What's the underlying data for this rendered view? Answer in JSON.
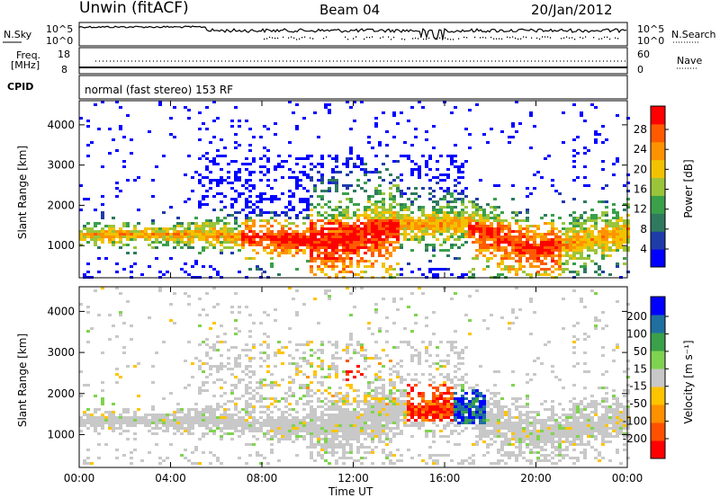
{
  "header": {
    "station": "Unwin (fitACF)",
    "beam": "Beam 04",
    "date": "20/Jan/2012"
  },
  "top_panels": {
    "nsky_label": "N.Sky",
    "nsky_ticks": [
      "10^5",
      "10^0"
    ],
    "nsearch_label": "N.Search",
    "nsearch_ticks": [
      "10^5",
      "10^0"
    ],
    "freq_label": "Freq.",
    "freq_unit": "[MHz]",
    "freq_ticks": [
      "18",
      "8"
    ],
    "nave_label": "Nave",
    "nave_ticks": [
      "60",
      "0"
    ],
    "cpid_label": "CPID",
    "cpid_text": "normal (fast stereo) 153 RF"
  },
  "colors": {
    "power_scale": [
      "#0000ff",
      "#1e3ca8",
      "#2f7a5e",
      "#3aa04a",
      "#9ac43a",
      "#f2c200",
      "#ff9200",
      "#ff5a00",
      "#ff0000"
    ],
    "velocity_scale": [
      "#ff0000",
      "#ff5000",
      "#ff9000",
      "#ffc400",
      "#c8c8c8",
      "#7fd34f",
      "#3aa04a",
      "#1f6fa0",
      "#0000ff"
    ]
  },
  "chart_data": [
    {
      "type": "heatmap",
      "name": "power",
      "xlabel": "",
      "ylabel": "Slant Range [km]",
      "xlim": [
        "00:00",
        "24:00"
      ],
      "ylim": [
        200,
        4600
      ],
      "yticks": [
        "4000",
        "3000",
        "2000",
        "1000"
      ],
      "colorbar_label": "Power [dB]",
      "colorbar_ticks": [
        "28",
        "24",
        "20",
        "16",
        "12",
        "8",
        "4"
      ]
    },
    {
      "type": "heatmap",
      "name": "velocity",
      "xlabel": "Time UT",
      "ylabel": "Slant Range [km]",
      "xlim": [
        "00:00",
        "24:00"
      ],
      "ylim": [
        200,
        4600
      ],
      "yticks": [
        "4000",
        "3000",
        "2000",
        "1000"
      ],
      "xticks": [
        "00:00",
        "04:00",
        "08:00",
        "12:00",
        "16:00",
        "20:00",
        "00:00"
      ],
      "colorbar_label": "Velocity [m s⁻¹]",
      "colorbar_ticks": [
        "200",
        "100",
        "50",
        "15",
        "-15",
        "-50",
        "-100",
        "-200"
      ]
    }
  ]
}
